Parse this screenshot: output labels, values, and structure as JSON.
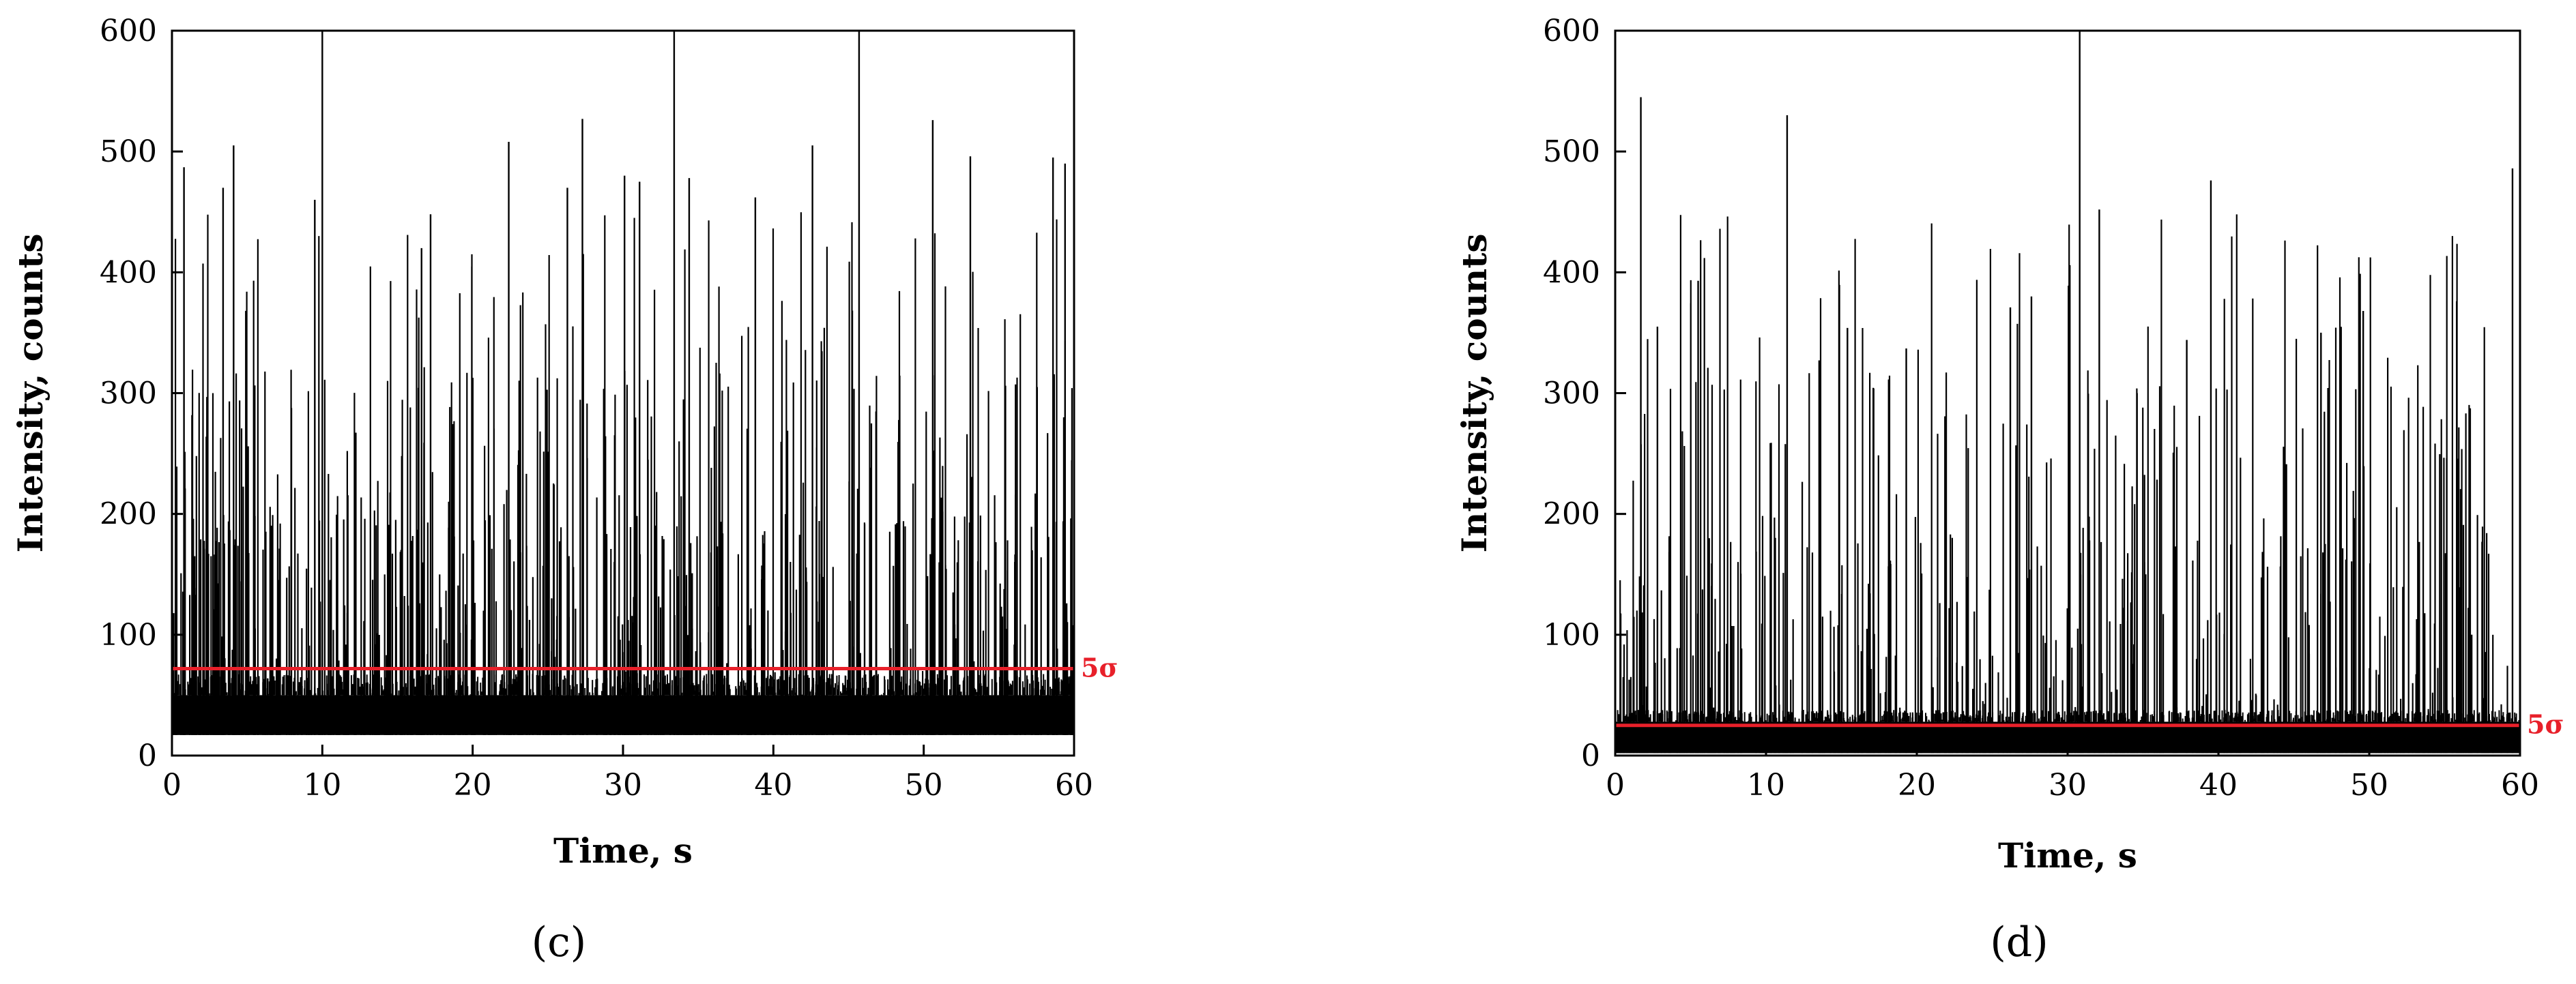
{
  "chart_data": [
    {
      "type": "line",
      "panel_label": "(c)",
      "xlabel": "Time, s",
      "ylabel": "Intensity, counts",
      "xlim": [
        0,
        60
      ],
      "ylim": [
        0,
        600
      ],
      "xticks": [
        0,
        10,
        20,
        30,
        40,
        50,
        60
      ],
      "yticks": [
        0,
        100,
        200,
        300,
        400,
        500,
        600
      ],
      "threshold": {
        "label": "5σ",
        "value": 72,
        "color": "#e8202a"
      },
      "baseline": {
        "low": 17,
        "high": 50
      },
      "series": [
        {
          "color": "#000000",
          "description_spikes": [
            {
              "x": 10.0,
              "y": 600
            },
            {
              "x": 33.4,
              "y": 600
            },
            {
              "x": 45.7,
              "y": 600
            },
            {
              "x": 0.8,
              "y": 487
            },
            {
              "x": 3.4,
              "y": 470
            },
            {
              "x": 4.1,
              "y": 505
            },
            {
              "x": 9.5,
              "y": 460
            },
            {
              "x": 16.6,
              "y": 420
            },
            {
              "x": 17.2,
              "y": 448
            },
            {
              "x": 22.4,
              "y": 508
            },
            {
              "x": 26.3,
              "y": 470
            },
            {
              "x": 27.3,
              "y": 527
            },
            {
              "x": 30.1,
              "y": 480
            },
            {
              "x": 31.1,
              "y": 475
            },
            {
              "x": 34.4,
              "y": 478
            },
            {
              "x": 38.8,
              "y": 462
            },
            {
              "x": 42.6,
              "y": 505
            },
            {
              "x": 50.6,
              "y": 526
            },
            {
              "x": 53.1,
              "y": 496
            },
            {
              "x": 58.6,
              "y": 495
            },
            {
              "x": 59.4,
              "y": 490
            }
          ]
        }
      ]
    },
    {
      "type": "line",
      "panel_label": "(d)",
      "xlabel": "Time, s",
      "ylabel": "Intensity, counts",
      "xlim": [
        0,
        60
      ],
      "ylim": [
        0,
        600
      ],
      "xticks": [
        0,
        10,
        20,
        30,
        40,
        50,
        60
      ],
      "yticks": [
        0,
        100,
        200,
        300,
        400,
        500,
        600
      ],
      "threshold": {
        "label": "5σ",
        "value": 25,
        "color": "#e8202a"
      },
      "baseline": {
        "low": 2,
        "high": 28
      },
      "series": [
        {
          "color": "#000000",
          "description_spikes": [
            {
              "x": 30.8,
              "y": 600
            },
            {
              "x": 1.7,
              "y": 545
            },
            {
              "x": 11.4,
              "y": 530
            },
            {
              "x": 39.5,
              "y": 476
            },
            {
              "x": 32.1,
              "y": 452
            },
            {
              "x": 59.5,
              "y": 486
            },
            {
              "x": 5.5,
              "y": 393
            },
            {
              "x": 27.6,
              "y": 380
            },
            {
              "x": 26.2,
              "y": 371
            },
            {
              "x": 55.8,
              "y": 376
            },
            {
              "x": 49.6,
              "y": 368
            },
            {
              "x": 15.4,
              "y": 354
            },
            {
              "x": 2.8,
              "y": 355
            },
            {
              "x": 37.9,
              "y": 344
            },
            {
              "x": 19.3,
              "y": 337
            },
            {
              "x": 46.8,
              "y": 350
            },
            {
              "x": 60.0,
              "y": 376
            }
          ]
        }
      ]
    }
  ]
}
